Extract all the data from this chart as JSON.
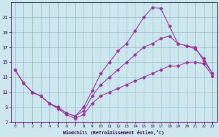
{
  "xlabel": "Windchill (Refroidissement éolien,°C)",
  "bg_color": "#cce8ee",
  "grid_color": "#99bbcc",
  "line_color": "#993399",
  "xlim": [
    -0.5,
    23.5
  ],
  "ylim": [
    7,
    23
  ],
  "xticks": [
    0,
    1,
    2,
    3,
    4,
    5,
    6,
    7,
    8,
    9,
    10,
    11,
    12,
    13,
    14,
    15,
    16,
    17,
    18,
    19,
    20,
    21,
    22,
    23
  ],
  "yticks": [
    7,
    9,
    11,
    13,
    15,
    17,
    19,
    21
  ],
  "lines": [
    {
      "x": [
        0,
        1,
        2,
        3,
        4,
        5,
        6,
        7,
        8,
        9,
        10,
        11,
        12,
        13,
        14,
        15,
        16,
        17,
        18,
        19,
        20,
        21,
        22,
        23
      ],
      "y": [
        14,
        12.2,
        11,
        10.5,
        9.5,
        8.8,
        8.0,
        7.5,
        8.0,
        9.5,
        10.5,
        11.0,
        11.5,
        12.0,
        12.5,
        13.0,
        13.5,
        14.0,
        14.5,
        14.5,
        15.0,
        15.0,
        14.8,
        13.2
      ]
    },
    {
      "x": [
        0,
        1,
        2,
        3,
        4,
        5,
        6,
        7,
        8,
        9,
        10,
        11,
        12,
        13,
        14,
        15,
        16,
        17,
        18,
        19,
        20,
        21,
        22,
        23
      ],
      "y": [
        14,
        12.2,
        11,
        10.5,
        9.5,
        9.0,
        8.2,
        7.8,
        8.5,
        10.5,
        12.0,
        13.0,
        14.0,
        15.0,
        16.0,
        17.0,
        17.5,
        18.2,
        18.5,
        17.5,
        17.2,
        16.8,
        15.5,
        13.5
      ]
    },
    {
      "x": [
        0,
        1,
        2,
        3,
        4,
        5,
        6,
        7,
        8,
        9,
        10,
        11,
        12,
        13,
        14,
        15,
        16,
        17,
        18,
        19,
        20,
        21,
        22,
        23
      ],
      "y": [
        14,
        12.2,
        11,
        10.5,
        9.5,
        9.0,
        8.2,
        7.8,
        9.0,
        11.2,
        13.5,
        15.0,
        16.5,
        17.5,
        19.2,
        21.0,
        22.3,
        22.2,
        19.8,
        17.5,
        17.2,
        17.0,
        15.2,
        13.5
      ]
    }
  ]
}
